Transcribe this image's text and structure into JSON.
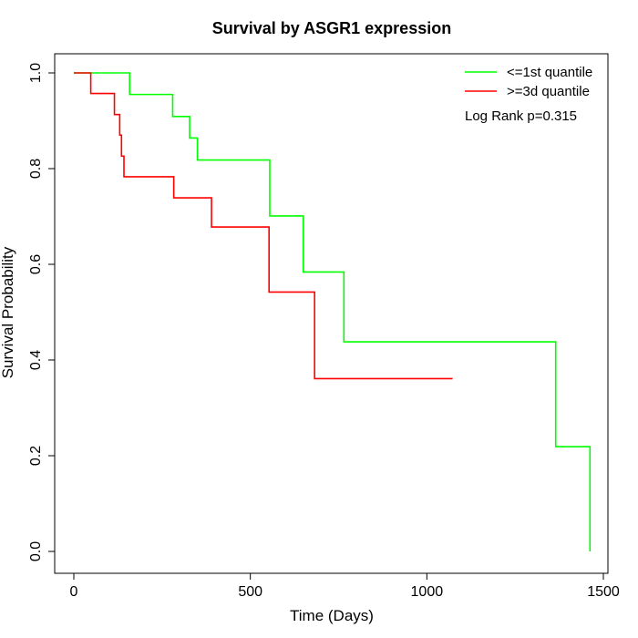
{
  "chart_data": {
    "type": "line",
    "title": "Survival by ASGR1 expression",
    "xlabel": "Time (Days)",
    "ylabel": "Survival Probability",
    "xlim": [
      0,
      1500
    ],
    "ylim": [
      0,
      1
    ],
    "x_ticks": [
      "0",
      "500",
      "1000",
      "1500"
    ],
    "x_tick_values": [
      0,
      500,
      1000,
      1500
    ],
    "y_ticks": [
      "0.0",
      "0.2",
      "0.4",
      "0.6",
      "0.8",
      "1.0"
    ],
    "y_tick_values": [
      0,
      0.2,
      0.4,
      0.6,
      0.8,
      1.0
    ],
    "grid": false,
    "legend_position": "top-right",
    "annotation": "Log Rank p=0.315",
    "series": [
      {
        "name": "<=1st quantile",
        "color": "#00ff00",
        "x": [
          0,
          158,
          280,
          328,
          350,
          555,
          650,
          765,
          1365,
          1462
        ],
        "y": [
          1.0,
          0.955,
          0.909,
          0.864,
          0.818,
          0.701,
          0.584,
          0.438,
          0.219,
          0.0
        ]
      },
      {
        "name": ">=3d quantile",
        "color": "#ff0000",
        "x": [
          0,
          48,
          115,
          130,
          135,
          142,
          283,
          390,
          553,
          682,
          1073
        ],
        "y": [
          1.0,
          0.957,
          0.913,
          0.87,
          0.826,
          0.783,
          0.739,
          0.678,
          0.542,
          0.361,
          0.361
        ]
      }
    ]
  }
}
